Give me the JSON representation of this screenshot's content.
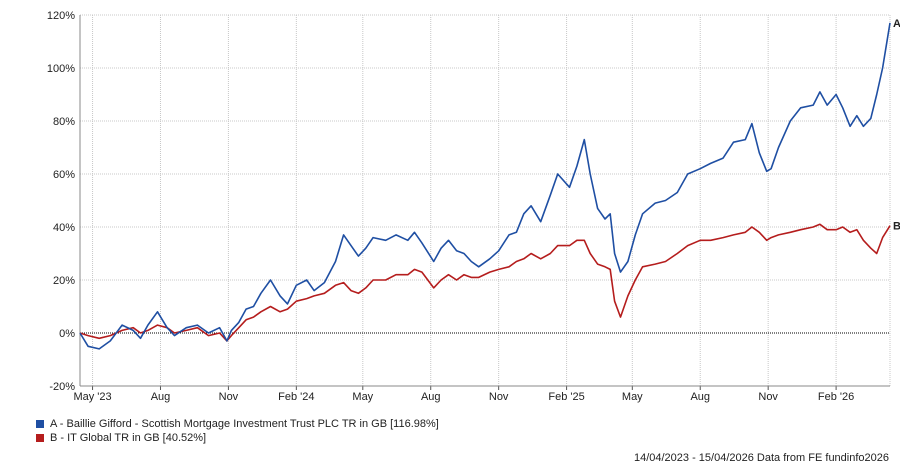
{
  "chart_data": {
    "type": "line",
    "y_unit": "%",
    "ylim": [
      -20,
      120
    ],
    "y_ticks": [
      -20,
      0,
      20,
      40,
      60,
      80,
      100,
      120
    ],
    "y_tick_labels": [
      "-20%",
      "0%",
      "20%",
      "40%",
      "60%",
      "80%",
      "100%",
      "120%"
    ],
    "x_range": [
      "2023-04-14",
      "2026-04-15"
    ],
    "x_ticks": [
      "2023-05-01",
      "2023-08-01",
      "2023-11-01",
      "2024-02-01",
      "2024-05-01",
      "2024-08-01",
      "2024-11-01",
      "2025-02-01",
      "2025-05-01",
      "2025-08-01",
      "2025-11-01",
      "2026-02-01"
    ],
    "x_tick_labels": [
      "May '23",
      "Aug",
      "Nov",
      "Feb '24",
      "May",
      "Aug",
      "Nov",
      "Feb '25",
      "May",
      "Aug",
      "Nov",
      "Feb '26"
    ],
    "grid": true,
    "zero_line": true,
    "legend_position": "bottom-left",
    "series": [
      {
        "name": "A - Baillie Gifford - Scottish Mortgage Investment Trust PLC TR in GB [116.98%]",
        "end_label": "A",
        "color": "#1f4fa3",
        "points": [
          [
            "2023-04-14",
            0
          ],
          [
            "2023-04-25",
            -5
          ],
          [
            "2023-05-10",
            -6
          ],
          [
            "2023-05-25",
            -3
          ],
          [
            "2023-06-10",
            3
          ],
          [
            "2023-06-25",
            1
          ],
          [
            "2023-07-05",
            -2
          ],
          [
            "2023-07-15",
            3
          ],
          [
            "2023-07-28",
            8
          ],
          [
            "2023-08-10",
            2
          ],
          [
            "2023-08-20",
            -1
          ],
          [
            "2023-09-05",
            2
          ],
          [
            "2023-09-20",
            3
          ],
          [
            "2023-10-05",
            0
          ],
          [
            "2023-10-20",
            2
          ],
          [
            "2023-10-30",
            -3
          ],
          [
            "2023-11-05",
            1
          ],
          [
            "2023-11-15",
            4
          ],
          [
            "2023-11-25",
            9
          ],
          [
            "2023-12-05",
            10
          ],
          [
            "2023-12-15",
            15
          ],
          [
            "2023-12-28",
            20
          ],
          [
            "2024-01-10",
            14
          ],
          [
            "2024-01-20",
            11
          ],
          [
            "2024-02-01",
            18
          ],
          [
            "2024-02-15",
            20
          ],
          [
            "2024-02-25",
            16
          ],
          [
            "2024-03-10",
            19
          ],
          [
            "2024-03-25",
            27
          ],
          [
            "2024-04-05",
            37
          ],
          [
            "2024-04-15",
            33
          ],
          [
            "2024-04-25",
            29
          ],
          [
            "2024-05-05",
            32
          ],
          [
            "2024-05-15",
            36
          ],
          [
            "2024-06-01",
            35
          ],
          [
            "2024-06-15",
            37
          ],
          [
            "2024-07-01",
            35
          ],
          [
            "2024-07-10",
            38
          ],
          [
            "2024-07-20",
            34
          ],
          [
            "2024-08-05",
            27
          ],
          [
            "2024-08-15",
            32
          ],
          [
            "2024-08-25",
            35
          ],
          [
            "2024-09-05",
            31
          ],
          [
            "2024-09-15",
            30
          ],
          [
            "2024-09-25",
            27
          ],
          [
            "2024-10-05",
            25
          ],
          [
            "2024-10-20",
            28
          ],
          [
            "2024-11-01",
            31
          ],
          [
            "2024-11-15",
            37
          ],
          [
            "2024-11-25",
            38
          ],
          [
            "2024-12-05",
            45
          ],
          [
            "2024-12-15",
            48
          ],
          [
            "2024-12-28",
            42
          ],
          [
            "2025-01-10",
            52
          ],
          [
            "2025-01-20",
            60
          ],
          [
            "2025-02-05",
            55
          ],
          [
            "2025-02-15",
            63
          ],
          [
            "2025-02-25",
            73
          ],
          [
            "2025-03-05",
            60
          ],
          [
            "2025-03-15",
            47
          ],
          [
            "2025-03-25",
            43
          ],
          [
            "2025-04-01",
            45
          ],
          [
            "2025-04-07",
            30
          ],
          [
            "2025-04-15",
            23
          ],
          [
            "2025-04-25",
            27
          ],
          [
            "2025-05-05",
            37
          ],
          [
            "2025-05-15",
            45
          ],
          [
            "2025-06-01",
            49
          ],
          [
            "2025-06-15",
            50
          ],
          [
            "2025-07-01",
            53
          ],
          [
            "2025-07-15",
            60
          ],
          [
            "2025-08-01",
            62
          ],
          [
            "2025-08-15",
            64
          ],
          [
            "2025-09-01",
            66
          ],
          [
            "2025-09-15",
            72
          ],
          [
            "2025-10-01",
            73
          ],
          [
            "2025-10-10",
            79
          ],
          [
            "2025-10-20",
            68
          ],
          [
            "2025-10-30",
            61
          ],
          [
            "2025-11-05",
            62
          ],
          [
            "2025-11-15",
            70
          ],
          [
            "2025-12-01",
            80
          ],
          [
            "2025-12-15",
            85
          ],
          [
            "2026-01-01",
            86
          ],
          [
            "2026-01-10",
            91
          ],
          [
            "2026-01-20",
            86
          ],
          [
            "2026-02-01",
            90
          ],
          [
            "2026-02-10",
            85
          ],
          [
            "2026-02-20",
            78
          ],
          [
            "2026-03-01",
            82
          ],
          [
            "2026-03-10",
            78
          ],
          [
            "2026-03-20",
            81
          ],
          [
            "2026-03-28",
            90
          ],
          [
            "2026-04-05",
            100
          ],
          [
            "2026-04-15",
            117
          ]
        ]
      },
      {
        "name": "B - IT Global TR in GB [40.52%]",
        "end_label": "B",
        "color": "#b51d1d",
        "points": [
          [
            "2023-04-14",
            0
          ],
          [
            "2023-04-25",
            -1
          ],
          [
            "2023-05-10",
            -2
          ],
          [
            "2023-05-25",
            -1
          ],
          [
            "2023-06-10",
            1
          ],
          [
            "2023-06-25",
            2
          ],
          [
            "2023-07-05",
            0
          ],
          [
            "2023-07-15",
            1
          ],
          [
            "2023-07-28",
            3
          ],
          [
            "2023-08-10",
            2
          ],
          [
            "2023-08-20",
            0
          ],
          [
            "2023-09-05",
            1
          ],
          [
            "2023-09-20",
            2
          ],
          [
            "2023-10-05",
            -1
          ],
          [
            "2023-10-20",
            0
          ],
          [
            "2023-10-30",
            -3
          ],
          [
            "2023-11-05",
            -1
          ],
          [
            "2023-11-15",
            2
          ],
          [
            "2023-11-25",
            5
          ],
          [
            "2023-12-05",
            6
          ],
          [
            "2023-12-15",
            8
          ],
          [
            "2023-12-28",
            10
          ],
          [
            "2024-01-10",
            8
          ],
          [
            "2024-01-20",
            9
          ],
          [
            "2024-02-01",
            12
          ],
          [
            "2024-02-15",
            13
          ],
          [
            "2024-02-25",
            14
          ],
          [
            "2024-03-10",
            15
          ],
          [
            "2024-03-25",
            18
          ],
          [
            "2024-04-05",
            19
          ],
          [
            "2024-04-15",
            16
          ],
          [
            "2024-04-25",
            15
          ],
          [
            "2024-05-05",
            17
          ],
          [
            "2024-05-15",
            20
          ],
          [
            "2024-06-01",
            20
          ],
          [
            "2024-06-15",
            22
          ],
          [
            "2024-07-01",
            22
          ],
          [
            "2024-07-10",
            24
          ],
          [
            "2024-07-20",
            23
          ],
          [
            "2024-08-05",
            17
          ],
          [
            "2024-08-15",
            20
          ],
          [
            "2024-08-25",
            22
          ],
          [
            "2024-09-05",
            20
          ],
          [
            "2024-09-15",
            22
          ],
          [
            "2024-09-25",
            21
          ],
          [
            "2024-10-05",
            21
          ],
          [
            "2024-10-20",
            23
          ],
          [
            "2024-11-01",
            24
          ],
          [
            "2024-11-15",
            25
          ],
          [
            "2024-11-25",
            27
          ],
          [
            "2024-12-05",
            28
          ],
          [
            "2024-12-15",
            30
          ],
          [
            "2024-12-28",
            28
          ],
          [
            "2025-01-10",
            30
          ],
          [
            "2025-01-20",
            33
          ],
          [
            "2025-02-05",
            33
          ],
          [
            "2025-02-15",
            35
          ],
          [
            "2025-02-25",
            35
          ],
          [
            "2025-03-05",
            30
          ],
          [
            "2025-03-15",
            26
          ],
          [
            "2025-03-25",
            25
          ],
          [
            "2025-04-01",
            24
          ],
          [
            "2025-04-07",
            12
          ],
          [
            "2025-04-15",
            6
          ],
          [
            "2025-04-25",
            14
          ],
          [
            "2025-05-05",
            20
          ],
          [
            "2025-05-15",
            25
          ],
          [
            "2025-06-01",
            26
          ],
          [
            "2025-06-15",
            27
          ],
          [
            "2025-07-01",
            30
          ],
          [
            "2025-07-15",
            33
          ],
          [
            "2025-08-01",
            35
          ],
          [
            "2025-08-15",
            35
          ],
          [
            "2025-09-01",
            36
          ],
          [
            "2025-09-15",
            37
          ],
          [
            "2025-10-01",
            38
          ],
          [
            "2025-10-10",
            40
          ],
          [
            "2025-10-20",
            38
          ],
          [
            "2025-10-30",
            35
          ],
          [
            "2025-11-05",
            36
          ],
          [
            "2025-11-15",
            37
          ],
          [
            "2025-12-01",
            38
          ],
          [
            "2025-12-15",
            39
          ],
          [
            "2026-01-01",
            40
          ],
          [
            "2026-01-10",
            41
          ],
          [
            "2026-01-20",
            39
          ],
          [
            "2026-02-01",
            39
          ],
          [
            "2026-02-10",
            40
          ],
          [
            "2026-02-20",
            38
          ],
          [
            "2026-03-01",
            39
          ],
          [
            "2026-03-10",
            35
          ],
          [
            "2026-03-20",
            32
          ],
          [
            "2026-03-28",
            30
          ],
          [
            "2026-04-05",
            36
          ],
          [
            "2026-04-15",
            40.5
          ]
        ]
      }
    ]
  },
  "footer": {
    "date_range": "14/04/2023 - 15/04/2026",
    "source": "Data from FE fundinfo2026"
  }
}
